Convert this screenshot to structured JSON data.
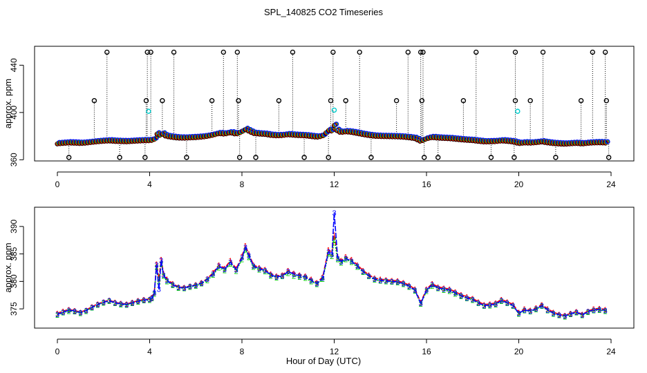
{
  "figure_title": "SPL_140825  CO2 Timeseries",
  "xlabel": "Hour of Day (UTC)",
  "series_colors": {
    "black": "#000000",
    "red": "#ff0000",
    "green": "#00cc00",
    "blue": "#0000ff",
    "cyan": "#00cccc"
  },
  "chart_data": [
    {
      "type": "scatter",
      "title": "",
      "ylabel": "approx. ppm",
      "xlim": [
        0,
        24
      ],
      "ylim": [
        359,
        456
      ],
      "xticks": [
        0,
        4,
        8,
        12,
        16,
        20,
        24
      ],
      "yticks": [
        360,
        400,
        440
      ],
      "grid": false,
      "legend": "none",
      "marker": "open circle",
      "spike_columns": {
        "description_values": "x positions (hours) where measurements reach the plot top (~450 ppm)",
        "high_x": [
          2.15,
          3.9,
          4.05,
          5.05,
          7.2,
          7.8,
          10.2,
          11.95,
          13.1,
          15.2,
          15.75,
          15.85,
          18.15,
          19.85,
          21.05,
          23.2,
          23.75
        ],
        "mid_x": [
          1.6,
          3.85,
          4.55,
          6.7,
          7.85,
          9.6,
          11.85,
          12.5,
          14.7,
          15.8,
          17.6,
          19.85,
          20.5,
          22.7,
          23.8
        ],
        "mid_value": 410,
        "low_x": [
          0.5,
          2.7,
          3.8,
          5.6,
          7.9,
          8.6,
          10.7,
          11.75,
          13.6,
          15.9,
          16.5,
          18.8,
          19.8,
          21.6,
          23.9
        ],
        "low_value": 362
      },
      "cyan_points": [
        {
          "x": 3.95,
          "y": 401
        },
        {
          "x": 12.0,
          "y": 402
        },
        {
          "x": 19.95,
          "y": 401
        }
      ]
    },
    {
      "type": "line",
      "title": "",
      "ylabel": "approx. ppm",
      "xlim": [
        0,
        24
      ],
      "ylim": [
        371.5,
        393.5
      ],
      "xticks": [
        0,
        4,
        8,
        12,
        16,
        20,
        24
      ],
      "yticks": [
        375,
        380,
        385,
        390
      ],
      "grid": false,
      "legend": "none",
      "marker_labels": [
        "1",
        "2",
        "3"
      ],
      "x": [
        0,
        0.25,
        0.5,
        0.75,
        1,
        1.25,
        1.5,
        1.75,
        2,
        2.25,
        2.5,
        2.75,
        3,
        3.25,
        3.5,
        3.75,
        4,
        4.1,
        4.2,
        4.3,
        4.4,
        4.5,
        4.6,
        4.75,
        5,
        5.25,
        5.5,
        5.75,
        6,
        6.25,
        6.5,
        6.75,
        7,
        7.25,
        7.5,
        7.75,
        8,
        8.15,
        8.3,
        8.5,
        8.75,
        9,
        9.25,
        9.5,
        9.75,
        10,
        10.25,
        10.5,
        10.75,
        11,
        11.25,
        11.5,
        11.75,
        11.9,
        12,
        12.15,
        12.3,
        12.5,
        12.75,
        13,
        13.25,
        13.5,
        13.75,
        14,
        14.25,
        14.5,
        14.75,
        15,
        15.25,
        15.5,
        15.75,
        16,
        16.25,
        16.5,
        16.75,
        17,
        17.25,
        17.5,
        17.75,
        18,
        18.25,
        18.5,
        18.75,
        19,
        19.25,
        19.5,
        19.75,
        20,
        20.25,
        20.5,
        20.75,
        21,
        21.25,
        21.5,
        21.75,
        22,
        22.25,
        22.5,
        22.75,
        23,
        23.25,
        23.5,
        23.75
      ],
      "series": [
        {
          "name": "1",
          "color": "#ff0000",
          "dash": "6,3",
          "values": [
            374.2,
            374.6,
            374.9,
            374.7,
            374.4,
            374.8,
            375.4,
            375.9,
            376.3,
            376.6,
            376.2,
            376.0,
            375.9,
            376.2,
            376.5,
            376.7,
            376.8,
            377.1,
            378.0,
            383.2,
            380.5,
            384.0,
            381.5,
            380.4,
            379.6,
            379.0,
            378.9,
            379.2,
            379.4,
            379.8,
            380.5,
            381.6,
            383.0,
            382.4,
            383.8,
            382.3,
            384.6,
            386.5,
            385.0,
            383.0,
            382.5,
            382.2,
            381.4,
            381.0,
            381.2,
            382.0,
            381.5,
            381.2,
            381.0,
            380.4,
            379.8,
            380.8,
            385.8,
            385.2,
            388.5,
            384.5,
            383.8,
            384.5,
            384.0,
            383.0,
            382.0,
            381.2,
            380.6,
            380.4,
            380.3,
            380.2,
            380.1,
            379.8,
            379.3,
            378.6,
            376.2,
            378.6,
            379.6,
            379.0,
            378.8,
            378.6,
            378.1,
            377.6,
            377.2,
            376.9,
            376.3,
            375.8,
            375.9,
            376.1,
            376.7,
            376.3,
            375.8,
            374.4,
            375.0,
            374.8,
            375.2,
            375.8,
            375.0,
            374.4,
            374.0,
            373.8,
            374.2,
            374.5,
            374.0,
            374.6,
            375.0,
            375.1,
            374.9
          ]
        },
        {
          "name": "2",
          "color": "#00cc00",
          "dash": "2,2",
          "values": [
            373.9,
            374.3,
            374.6,
            374.5,
            374.2,
            374.6,
            375.2,
            375.7,
            376.1,
            376.4,
            376.0,
            375.8,
            375.7,
            376.0,
            376.3,
            376.5,
            376.6,
            376.9,
            377.7,
            382.6,
            380.0,
            383.2,
            381.0,
            380.0,
            379.3,
            378.8,
            378.7,
            379.0,
            379.2,
            379.6,
            380.2,
            381.2,
            382.5,
            382.0,
            383.2,
            381.9,
            384.0,
            385.8,
            384.4,
            382.6,
            382.1,
            381.8,
            381.0,
            380.7,
            380.9,
            381.5,
            381.0,
            380.8,
            380.6,
            380.0,
            379.5,
            380.4,
            385.0,
            384.6,
            387.6,
            384.0,
            383.4,
            384.0,
            383.5,
            382.6,
            381.7,
            380.9,
            380.3,
            380.1,
            380.0,
            379.9,
            379.8,
            379.5,
            379.0,
            378.3,
            375.9,
            378.2,
            379.2,
            378.7,
            378.4,
            378.2,
            377.7,
            377.3,
            376.9,
            376.6,
            376.0,
            375.5,
            375.6,
            375.8,
            376.4,
            376.0,
            375.5,
            374.1,
            374.7,
            374.5,
            374.9,
            375.5,
            374.7,
            374.1,
            373.8,
            373.6,
            374.0,
            374.3,
            373.8,
            374.4,
            374.7,
            374.8,
            374.6
          ]
        },
        {
          "name": "3",
          "color": "#0000ff",
          "dash": "8,2",
          "values": [
            374.0,
            374.4,
            374.8,
            374.6,
            374.3,
            374.7,
            375.3,
            375.8,
            376.2,
            376.5,
            376.1,
            375.9,
            375.8,
            376.1,
            376.4,
            376.6,
            376.7,
            377.0,
            377.9,
            383.0,
            378.6,
            383.8,
            381.2,
            380.2,
            379.4,
            378.9,
            378.8,
            379.1,
            379.3,
            379.7,
            380.4,
            381.4,
            382.8,
            382.2,
            383.5,
            382.1,
            384.3,
            386.2,
            384.7,
            382.8,
            382.3,
            382.0,
            381.2,
            380.8,
            381.0,
            381.8,
            381.3,
            381.0,
            380.8,
            380.2,
            379.6,
            380.6,
            385.4,
            384.9,
            392.5,
            384.2,
            383.6,
            384.2,
            383.7,
            382.8,
            381.8,
            381.0,
            380.4,
            380.2,
            380.1,
            380.0,
            379.9,
            379.6,
            379.1,
            378.4,
            376.0,
            378.4,
            379.4,
            378.8,
            378.6,
            378.4,
            377.9,
            377.4,
            377.0,
            376.7,
            376.1,
            375.6,
            375.7,
            375.9,
            376.5,
            376.1,
            375.6,
            374.2,
            374.8,
            374.6,
            375.0,
            375.6,
            374.8,
            374.2,
            373.9,
            373.7,
            374.1,
            374.4,
            373.9,
            374.5,
            374.8,
            374.9,
            374.7
          ]
        }
      ]
    }
  ]
}
